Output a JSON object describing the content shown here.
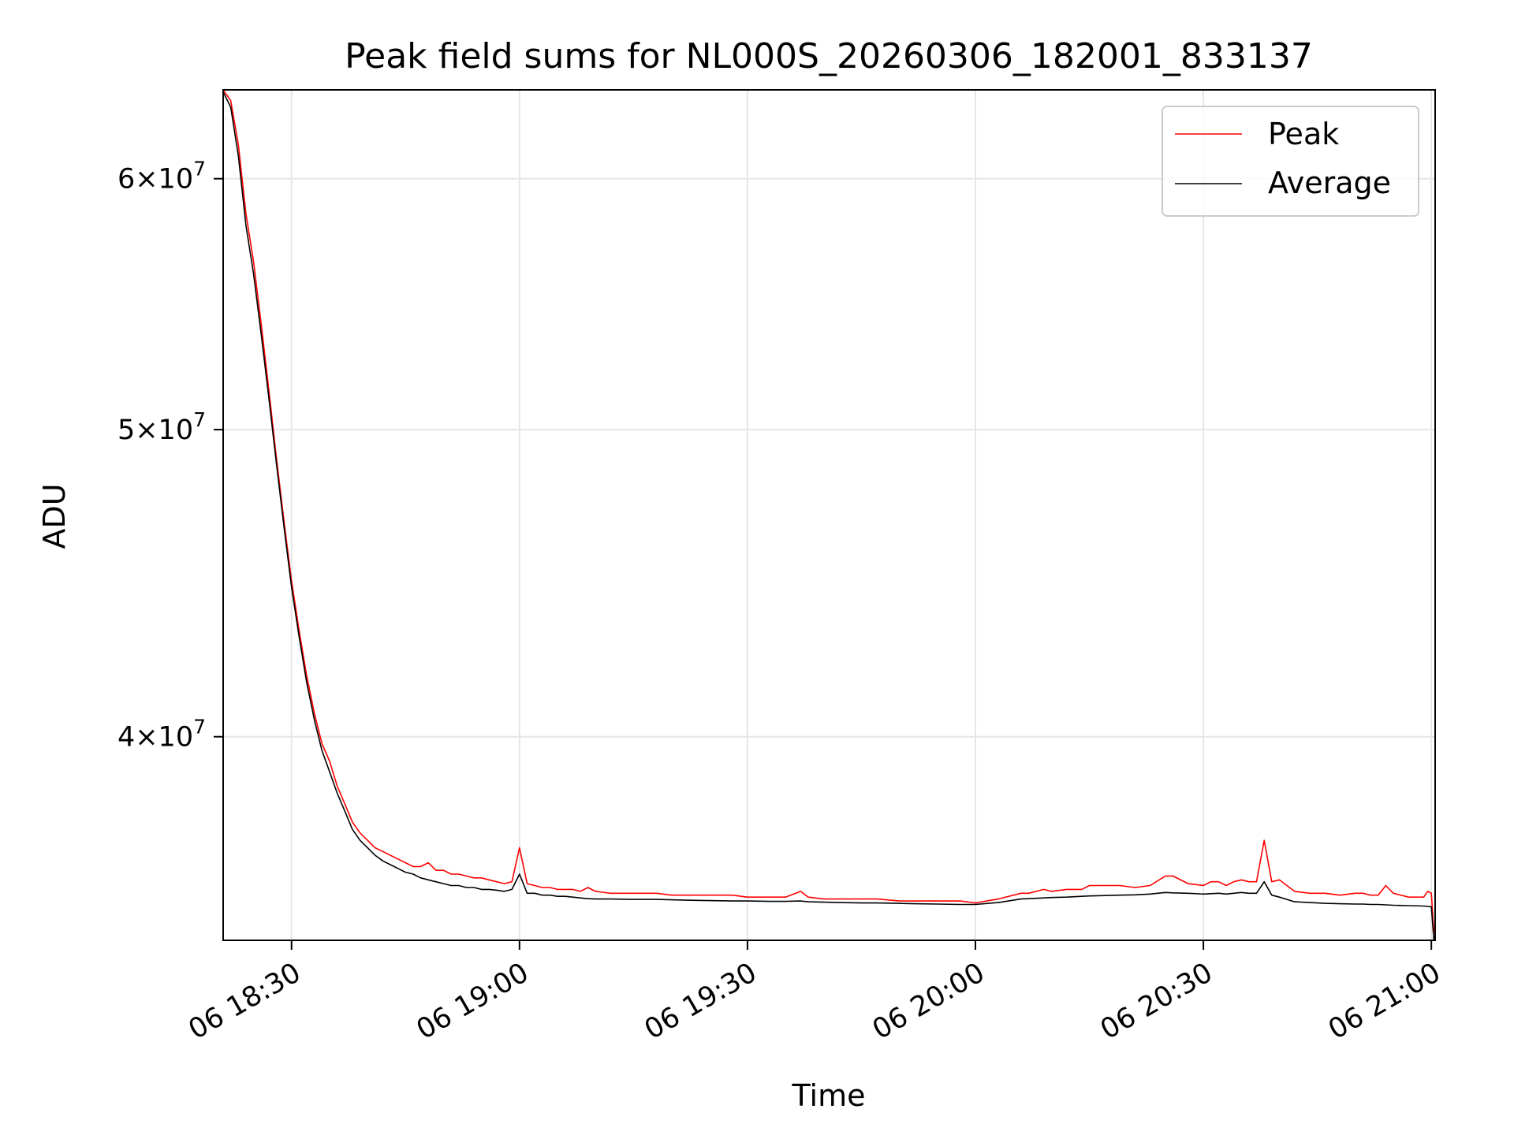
{
  "chart_data": {
    "type": "line",
    "title": "Peak field sums for NL000S_20260306_182001_833137",
    "xlabel": "Time",
    "ylabel": "ADU",
    "y_scale": "log",
    "grid": true,
    "legend_position": "top-right",
    "xlim": [
      "2026-03-06 18:21",
      "2026-03-06 21:00:30"
    ],
    "ylim": [
      34500000,
      64000000
    ],
    "x_ticks": [
      {
        "label": "06 18:30",
        "value": "2026-03-06 18:30"
      },
      {
        "label": "06 19:00",
        "value": "2026-03-06 19:00"
      },
      {
        "label": "06 19:30",
        "value": "2026-03-06 19:30"
      },
      {
        "label": "06 20:00",
        "value": "2026-03-06 20:00"
      },
      {
        "label": "06 20:30",
        "value": "2026-03-06 20:30"
      },
      {
        "label": "06 21:00",
        "value": "2026-03-06 21:00"
      }
    ],
    "y_ticks": [
      {
        "mantissa": "6",
        "exponent": "7",
        "value": 60000000
      },
      {
        "mantissa": "5",
        "exponent": "7",
        "value": 50000000
      },
      {
        "mantissa": "4",
        "exponent": "7",
        "value": 40000000
      }
    ],
    "x": [
      "18:21",
      "18:22",
      "18:23",
      "18:24",
      "18:25",
      "18:26",
      "18:27",
      "18:28",
      "18:29",
      "18:30",
      "18:31",
      "18:32",
      "18:33",
      "18:34",
      "18:35",
      "18:36",
      "18:37",
      "18:38",
      "18:39",
      "18:40",
      "18:41",
      "18:42",
      "18:43",
      "18:44",
      "18:45",
      "18:46",
      "18:47",
      "18:48",
      "18:49",
      "18:50",
      "18:51",
      "18:52",
      "18:53",
      "18:54",
      "18:55",
      "18:56",
      "18:57",
      "18:58",
      "18:59",
      "19:00",
      "19:01",
      "19:02",
      "19:03",
      "19:04",
      "19:05",
      "19:06",
      "19:07",
      "19:08",
      "19:09",
      "19:10",
      "19:12",
      "19:15",
      "19:18",
      "19:20",
      "19:22",
      "19:25",
      "19:28",
      "19:30",
      "19:33",
      "19:35",
      "19:37",
      "19:38",
      "19:40",
      "19:42",
      "19:45",
      "19:47",
      "19:50",
      "19:52",
      "19:55",
      "19:58",
      "20:00",
      "20:03",
      "20:06",
      "20:07",
      "20:09",
      "20:10",
      "20:12",
      "20:14",
      "20:15",
      "20:17",
      "20:19",
      "20:21",
      "20:23",
      "20:25",
      "20:26",
      "20:28",
      "20:30",
      "20:31",
      "20:32",
      "20:33",
      "20:34",
      "20:35",
      "20:36",
      "20:37",
      "20:38",
      "20:39",
      "20:40",
      "20:42",
      "20:44",
      "20:46",
      "20:48",
      "20:50",
      "20:51",
      "20:52",
      "20:53",
      "20:54",
      "20:55",
      "20:57",
      "20:59",
      "20:59:30",
      "21:00",
      "21:00:20",
      "21:00:30"
    ],
    "series": [
      {
        "name": "Peak",
        "color": "#ff0000",
        "values": [
          64000000,
          63500000,
          61500000,
          58500000,
          56500000,
          54000000,
          51500000,
          49000000,
          46800000,
          44800000,
          43200000,
          41800000,
          40700000,
          39800000,
          39300000,
          38600000,
          38100000,
          37600000,
          37300000,
          37100000,
          36900000,
          36800000,
          36700000,
          36600000,
          36500000,
          36400000,
          36400000,
          36500000,
          36300000,
          36300000,
          36200000,
          36200000,
          36150000,
          36100000,
          36100000,
          36050000,
          36000000,
          35950000,
          36000000,
          36900000,
          35950000,
          35900000,
          35850000,
          35850000,
          35800000,
          35800000,
          35800000,
          35750000,
          35850000,
          35750000,
          35700000,
          35700000,
          35700000,
          35650000,
          35650000,
          35650000,
          35650000,
          35600000,
          35600000,
          35600000,
          35750000,
          35600000,
          35550000,
          35550000,
          35550000,
          35550000,
          35500000,
          35500000,
          35500000,
          35500000,
          35450000,
          35550000,
          35700000,
          35700000,
          35800000,
          35750000,
          35800000,
          35800000,
          35900000,
          35900000,
          35900000,
          35850000,
          35900000,
          36150000,
          36150000,
          35950000,
          35900000,
          36000000,
          36000000,
          35900000,
          36000000,
          36050000,
          36000000,
          36000000,
          37100000,
          36000000,
          36050000,
          35750000,
          35700000,
          35700000,
          35650000,
          35700000,
          35700000,
          35650000,
          35650000,
          35900000,
          35700000,
          35600000,
          35600000,
          35750000,
          35700000,
          34700000,
          34800000
        ]
      },
      {
        "name": "Average",
        "color": "#000000",
        "values": [
          63900000,
          63200000,
          61000000,
          58000000,
          56000000,
          53600000,
          51200000,
          48800000,
          46600000,
          44600000,
          43000000,
          41600000,
          40500000,
          39600000,
          39000000,
          38400000,
          37900000,
          37400000,
          37100000,
          36900000,
          36700000,
          36550000,
          36450000,
          36350000,
          36250000,
          36200000,
          36100000,
          36050000,
          36000000,
          35950000,
          35900000,
          35900000,
          35850000,
          35850000,
          35800000,
          35800000,
          35780000,
          35750000,
          35800000,
          36200000,
          35700000,
          35700000,
          35650000,
          35650000,
          35620000,
          35620000,
          35600000,
          35580000,
          35560000,
          35550000,
          35550000,
          35540000,
          35540000,
          35530000,
          35520000,
          35510000,
          35500000,
          35500000,
          35490000,
          35490000,
          35500000,
          35480000,
          35470000,
          35460000,
          35450000,
          35450000,
          35440000,
          35430000,
          35420000,
          35410000,
          35410000,
          35460000,
          35550000,
          35560000,
          35580000,
          35590000,
          35600000,
          35620000,
          35630000,
          35640000,
          35650000,
          35660000,
          35680000,
          35720000,
          35710000,
          35700000,
          35680000,
          35690000,
          35700000,
          35680000,
          35700000,
          35720000,
          35700000,
          35700000,
          36000000,
          35650000,
          35600000,
          35480000,
          35460000,
          35440000,
          35430000,
          35420000,
          35420000,
          35410000,
          35410000,
          35400000,
          35390000,
          35380000,
          35370000,
          35360000,
          35350000,
          34500000,
          34600000
        ]
      }
    ]
  }
}
